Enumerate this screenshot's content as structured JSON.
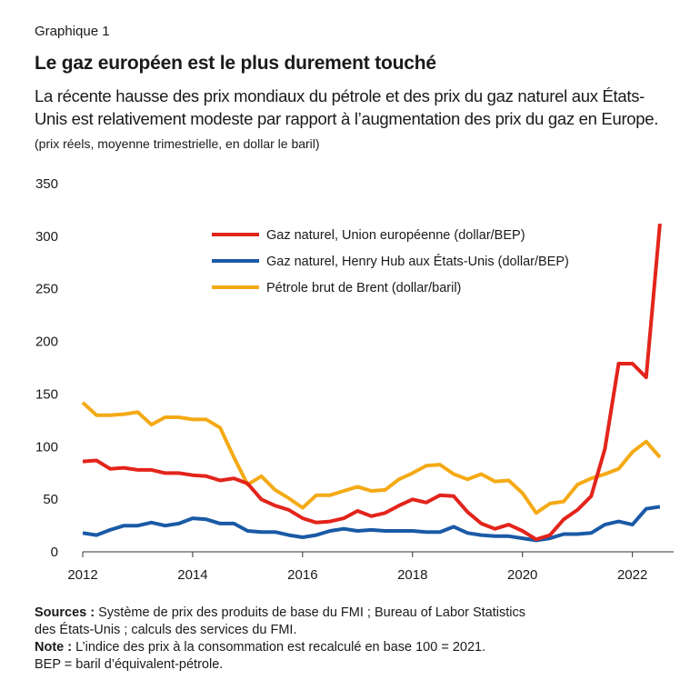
{
  "header": {
    "kicker": "Graphique 1",
    "title": "Le gaz européen est le plus durement touché",
    "subtitle": "La récente hausse des prix mondiaux du pétrole et des prix du gaz naturel aux États-Unis est relativement modeste par rapport à l’augmentation des prix du gaz en Europe.",
    "unit": "(prix réels, moyenne trimestrielle, en dollar le baril)"
  },
  "chart_data": {
    "type": "line",
    "ylim": [
      0,
      350
    ],
    "yticks": [
      0,
      50,
      100,
      150,
      200,
      250,
      300,
      350
    ],
    "xlim": [
      2012,
      2022.75
    ],
    "xticks": [
      2012,
      2014,
      2016,
      2018,
      2020,
      2022
    ],
    "grid": false,
    "legend_position": "top-center",
    "x": [
      2012.0,
      2012.25,
      2012.5,
      2012.75,
      2013.0,
      2013.25,
      2013.5,
      2013.75,
      2014.0,
      2014.25,
      2014.5,
      2014.75,
      2015.0,
      2015.25,
      2015.5,
      2015.75,
      2016.0,
      2016.25,
      2016.5,
      2016.75,
      2017.0,
      2017.25,
      2017.5,
      2017.75,
      2018.0,
      2018.25,
      2018.5,
      2018.75,
      2019.0,
      2019.25,
      2019.5,
      2019.75,
      2020.0,
      2020.25,
      2020.5,
      2020.75,
      2021.0,
      2021.25,
      2021.5,
      2021.75,
      2022.0,
      2022.25,
      2022.5
    ],
    "series": [
      {
        "name": "Gaz naturel, Union européenne (dollar/BEP)",
        "color": "#e3241b",
        "values": [
          85,
          86,
          78,
          79,
          77,
          77,
          74,
          74,
          72,
          71,
          67,
          69,
          64,
          49,
          43,
          39,
          31,
          27,
          28,
          31,
          38,
          33,
          36,
          43,
          49,
          46,
          53,
          52,
          37,
          26,
          21,
          25,
          19,
          11,
          15,
          30,
          39,
          52,
          97,
          178,
          178,
          165,
          311
        ]
      },
      {
        "name": "Gaz naturel, Henry Hub aux États-Unis (dollar/BEP)",
        "color": "#1a5aa6",
        "values": [
          17,
          15,
          20,
          24,
          24,
          27,
          24,
          26,
          31,
          30,
          26,
          26,
          19,
          18,
          18,
          15,
          13,
          15,
          19,
          21,
          19,
          20,
          19,
          19,
          19,
          18,
          18,
          23,
          17,
          15,
          14,
          14,
          12,
          10,
          12,
          16,
          16,
          17,
          25,
          28,
          25,
          40,
          42
        ]
      },
      {
        "name": "Pétrole brut de Brent (dollar/baril)",
        "color": "#f4aa15",
        "values": [
          141,
          129,
          129,
          130,
          132,
          120,
          127,
          127,
          125,
          125,
          117,
          89,
          63,
          71,
          58,
          50,
          41,
          53,
          53,
          57,
          61,
          57,
          58,
          68,
          74,
          81,
          82,
          73,
          68,
          73,
          66,
          67,
          55,
          36,
          45,
          47,
          63,
          69,
          73,
          78,
          94,
          104,
          89
        ]
      }
    ]
  },
  "notes": {
    "sources_label": "Sources :",
    "sources_text": " Système de prix des produits de base du FMI ; Bureau of Labor Statistics",
    "sources_text2": "des États-Unis ; calculs des services du FMI.",
    "note_label": "Note :",
    "note_text": " L’indice des prix à la consommation est recalculé en base 100 = 2021.",
    "bep_text": "BEP = baril d’équivalent-pétrole."
  }
}
